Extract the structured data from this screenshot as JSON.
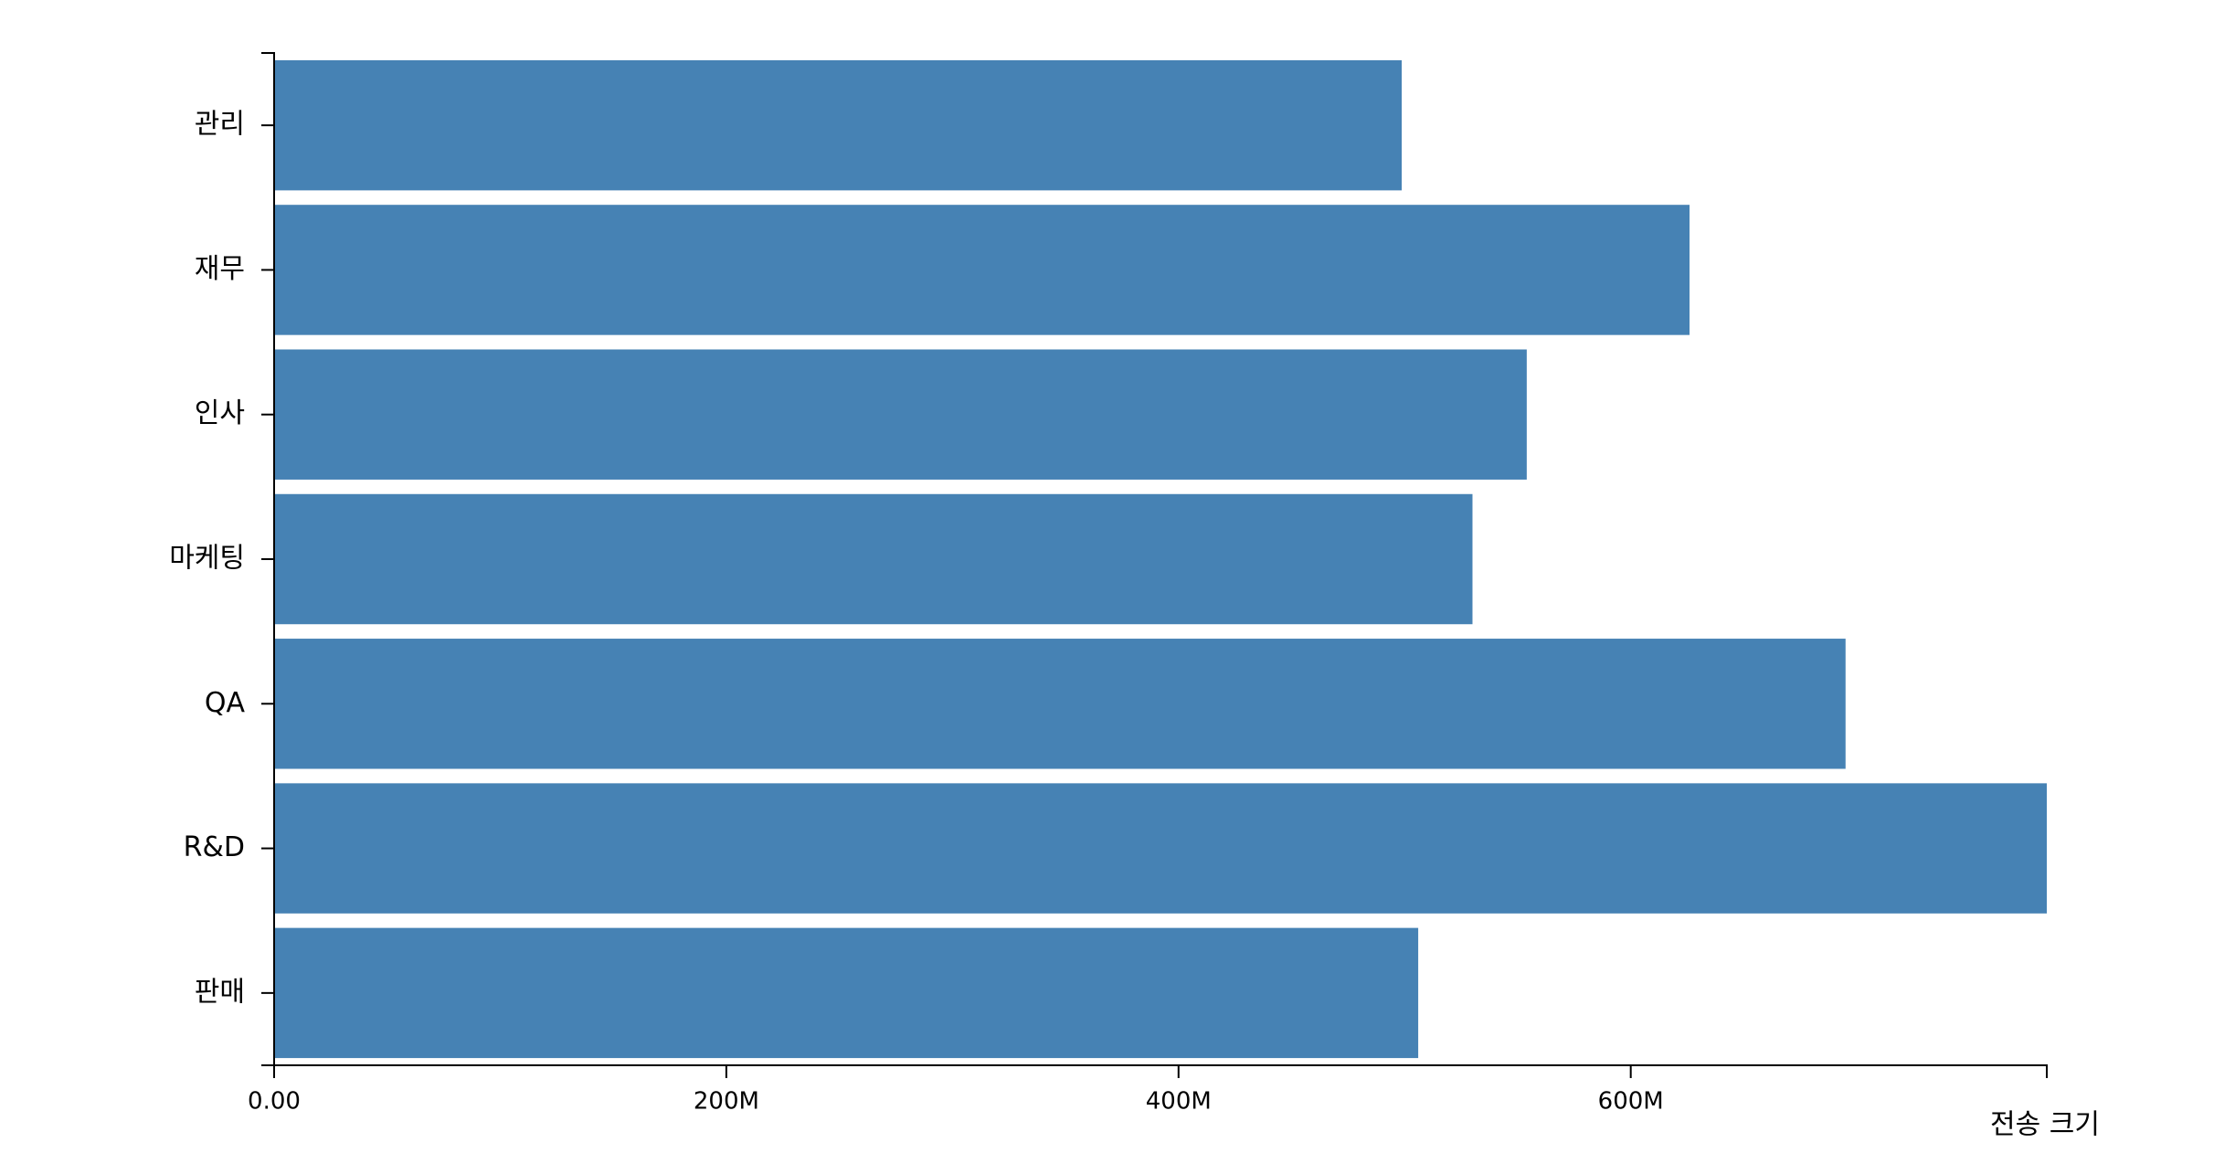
{
  "chart_data": {
    "type": "barh",
    "categories": [
      "관리",
      "재무",
      "인사",
      "마케팅",
      "QA",
      "R&D",
      "판매"
    ],
    "values": [
      498700000,
      626000000,
      554000000,
      530000000,
      695000000,
      784000000,
      506000000
    ],
    "color": "#4682b4",
    "xlim": [
      0,
      784000000
    ],
    "xticks": [
      {
        "value": 0,
        "label": "0.00"
      },
      {
        "value": 200000000,
        "label": "200M"
      },
      {
        "value": 400000000,
        "label": "400M"
      },
      {
        "value": 600000000,
        "label": "600M"
      }
    ],
    "x_label": "전송 크기",
    "grid": false
  }
}
